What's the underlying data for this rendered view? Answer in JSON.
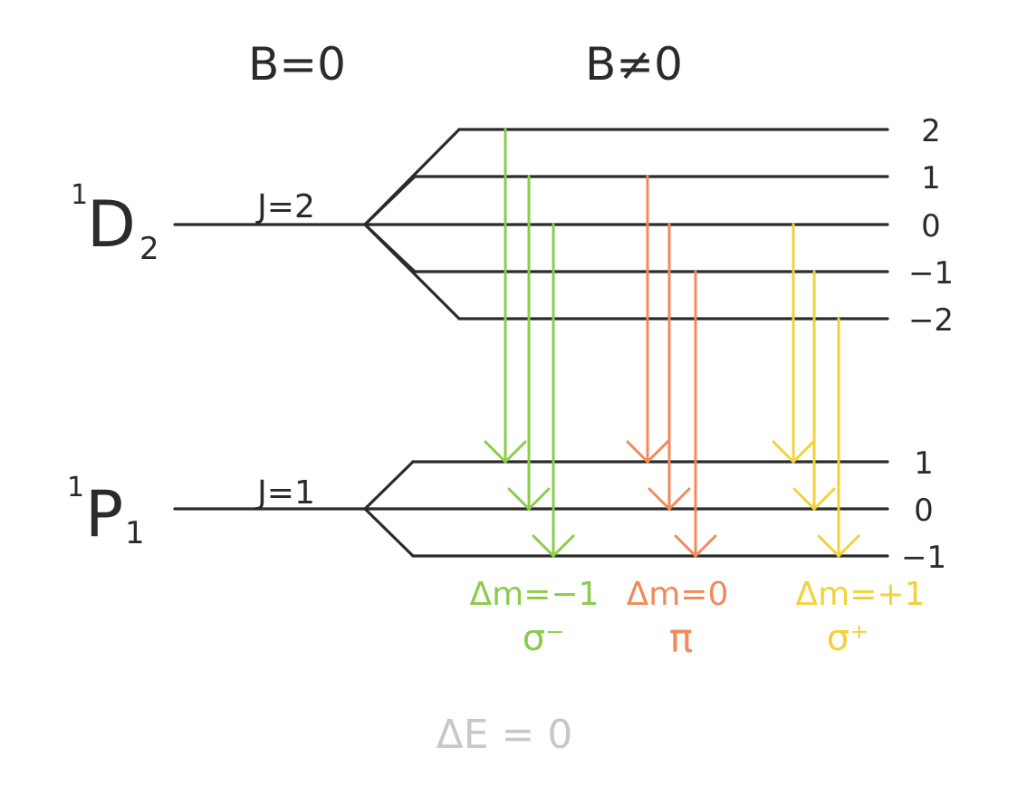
{
  "headers": {
    "b_zero": "B=0",
    "b_nonzero": "B≠0"
  },
  "upper_state": {
    "term_sup": "1",
    "term_letter": "D",
    "term_sub": "2",
    "j_label": "J=2",
    "sublevels": [
      "2",
      "1",
      "0",
      "−1",
      "−2"
    ]
  },
  "lower_state": {
    "term_sup": "1",
    "term_letter": "P",
    "term_sub": "1",
    "j_label": "J=1",
    "sublevels": [
      "1",
      "0",
      "−1"
    ]
  },
  "transition_groups": [
    {
      "id": "sigma-minus",
      "delta_m": "Δm=−1",
      "label": "σ⁻",
      "color": "#8ccb4b",
      "transitions": [
        {
          "from_m": 2,
          "to_m": 1
        },
        {
          "from_m": 1,
          "to_m": 0
        },
        {
          "from_m": 0,
          "to_m": -1
        }
      ]
    },
    {
      "id": "pi",
      "delta_m": "Δm=0",
      "label": "π",
      "color": "#f08a5a",
      "transitions": [
        {
          "from_m": 1,
          "to_m": 1
        },
        {
          "from_m": 0,
          "to_m": 0
        },
        {
          "from_m": -1,
          "to_m": -1
        }
      ]
    },
    {
      "id": "sigma-plus",
      "delta_m": "Δm=+1",
      "label": "σ⁺",
      "color": "#f2d23c",
      "transitions": [
        {
          "from_m": 0,
          "to_m": 1
        },
        {
          "from_m": -1,
          "to_m": 0
        },
        {
          "from_m": -2,
          "to_m": -1
        }
      ]
    }
  ],
  "footer": {
    "energy_note": "ΔE = 0",
    "color": "#c8c8c8"
  }
}
